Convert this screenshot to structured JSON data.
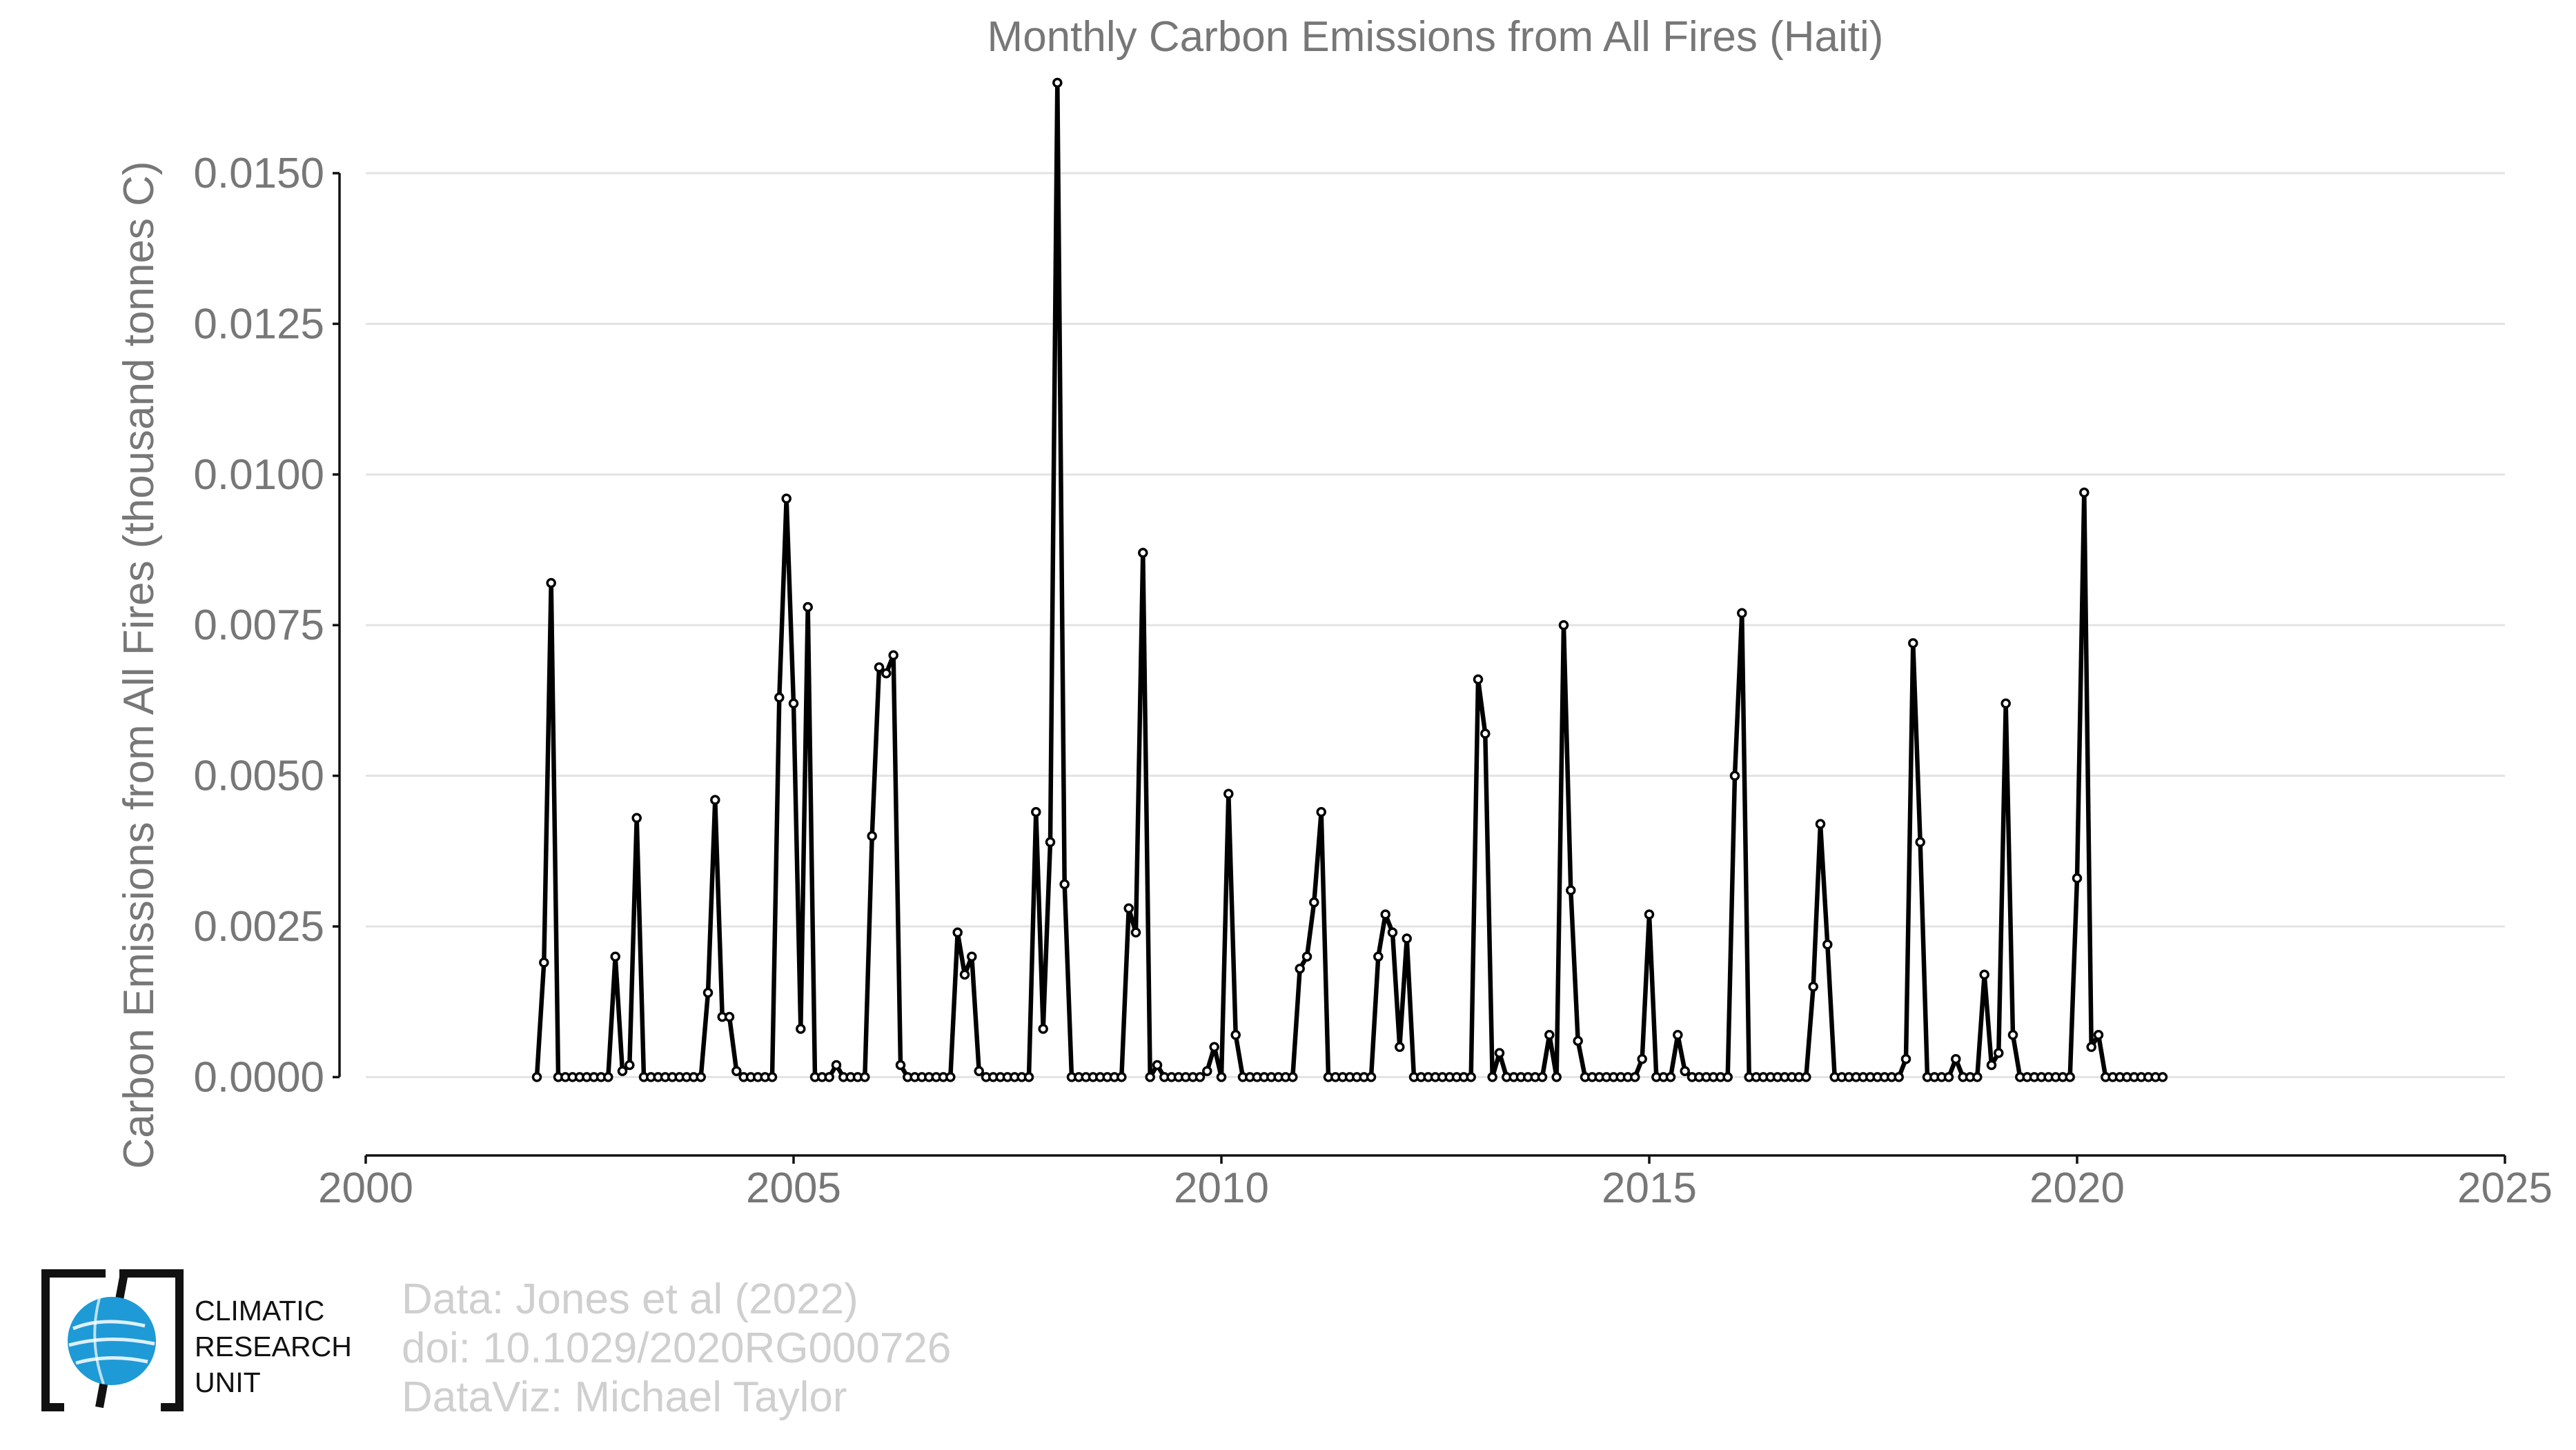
{
  "chart_data": {
    "type": "line",
    "title": "Monthly Carbon Emissions from All Fires (Haiti)",
    "xlabel": "",
    "ylabel": "Carbon Emissions from All Fires (thousand tonnes C)",
    "xlim": [
      2000,
      2025
    ],
    "ylim": [
      -0.0013,
      0.0165
    ],
    "xticks": [
      2000,
      2005,
      2010,
      2015,
      2020,
      2025
    ],
    "xtick_labels": [
      "2000",
      "2005",
      "2010",
      "2015",
      "2020",
      "2025"
    ],
    "yticks": [
      0.0,
      0.0025,
      0.005,
      0.0075,
      0.01,
      0.0125,
      0.015
    ],
    "ytick_labels": [
      "0.0000",
      "0.0025",
      "0.0050",
      "0.0075",
      "0.0100",
      "0.0125",
      "0.0150"
    ],
    "grid": "horizontal",
    "series": [
      {
        "color": "#000000",
        "x_start": 2002.0,
        "x_step": 0.0833333,
        "values": [
          0.0,
          0.0019,
          0.0082,
          0.0,
          0.0,
          0.0,
          0.0,
          0.0,
          0.0,
          0.0,
          0.0,
          0.002,
          0.0001,
          0.0002,
          0.0043,
          0.0,
          0.0,
          0.0,
          0.0,
          0.0,
          0.0,
          0.0,
          0.0,
          0.0,
          0.0014,
          0.0046,
          0.001,
          0.001,
          0.0001,
          0.0,
          0.0,
          0.0,
          0.0,
          0.0,
          0.0063,
          0.0096,
          0.0062,
          0.0008,
          0.0078,
          0.0,
          0.0,
          0.0,
          0.0002,
          0.0,
          0.0,
          0.0,
          0.0,
          0.004,
          0.0068,
          0.0067,
          0.007,
          0.0002,
          0.0,
          0.0,
          0.0,
          0.0,
          0.0,
          0.0,
          0.0,
          0.0024,
          0.0017,
          0.002,
          0.0001,
          0.0,
          0.0,
          0.0,
          0.0,
          0.0,
          0.0,
          0.0,
          0.0044,
          0.0008,
          0.0039,
          0.0165,
          0.0032,
          0.0,
          0.0,
          0.0,
          0.0,
          0.0,
          0.0,
          0.0,
          0.0,
          0.0028,
          0.0024,
          0.0087,
          0.0,
          0.0002,
          0.0,
          0.0,
          0.0,
          0.0,
          0.0,
          0.0,
          0.0001,
          0.0005,
          0.0,
          0.0047,
          0.0007,
          0.0,
          0.0,
          0.0,
          0.0,
          0.0,
          0.0,
          0.0,
          0.0,
          0.0018,
          0.002,
          0.0029,
          0.0044,
          0.0,
          0.0,
          0.0,
          0.0,
          0.0,
          0.0,
          0.0,
          0.002,
          0.0027,
          0.0024,
          0.0005,
          0.0023,
          0.0,
          0.0,
          0.0,
          0.0,
          0.0,
          0.0,
          0.0,
          0.0,
          0.0,
          0.0066,
          0.0057,
          0.0,
          0.0004,
          0.0,
          0.0,
          0.0,
          0.0,
          0.0,
          0.0,
          0.0007,
          0.0,
          0.0075,
          0.0031,
          0.0006,
          0.0,
          0.0,
          0.0,
          0.0,
          0.0,
          0.0,
          0.0,
          0.0,
          0.0003,
          0.0027,
          0.0,
          0.0,
          0.0,
          0.0007,
          0.0001,
          0.0,
          0.0,
          0.0,
          0.0,
          0.0,
          0.0,
          0.005,
          0.0077,
          0.0,
          0.0,
          0.0,
          0.0,
          0.0,
          0.0,
          0.0,
          0.0,
          0.0,
          0.0015,
          0.0042,
          0.0022,
          0.0,
          0.0,
          0.0,
          0.0,
          0.0,
          0.0,
          0.0,
          0.0,
          0.0,
          0.0,
          0.0003,
          0.0072,
          0.0039,
          0.0,
          0.0,
          0.0,
          0.0,
          0.0003,
          0.0,
          0.0,
          0.0,
          0.0017,
          0.0002,
          0.0004,
          0.0062,
          0.0007,
          0.0,
          0.0,
          0.0,
          0.0,
          0.0,
          0.0,
          0.0,
          0.0,
          0.0033,
          0.0097,
          0.0005,
          0.0007,
          0.0,
          0.0,
          0.0,
          0.0,
          0.0,
          0.0,
          0.0,
          0.0,
          0.0
        ]
      }
    ]
  },
  "credits": {
    "line1": "Data: Jones et al (2022)",
    "line2": "doi: 10.1029/2020RG000726",
    "line3": "DataViz: Michael Taylor"
  },
  "logo": {
    "line1": "CLIMATIC",
    "line2": "RESEARCH",
    "line3": "UNIT",
    "color": "#1e9ad6"
  }
}
